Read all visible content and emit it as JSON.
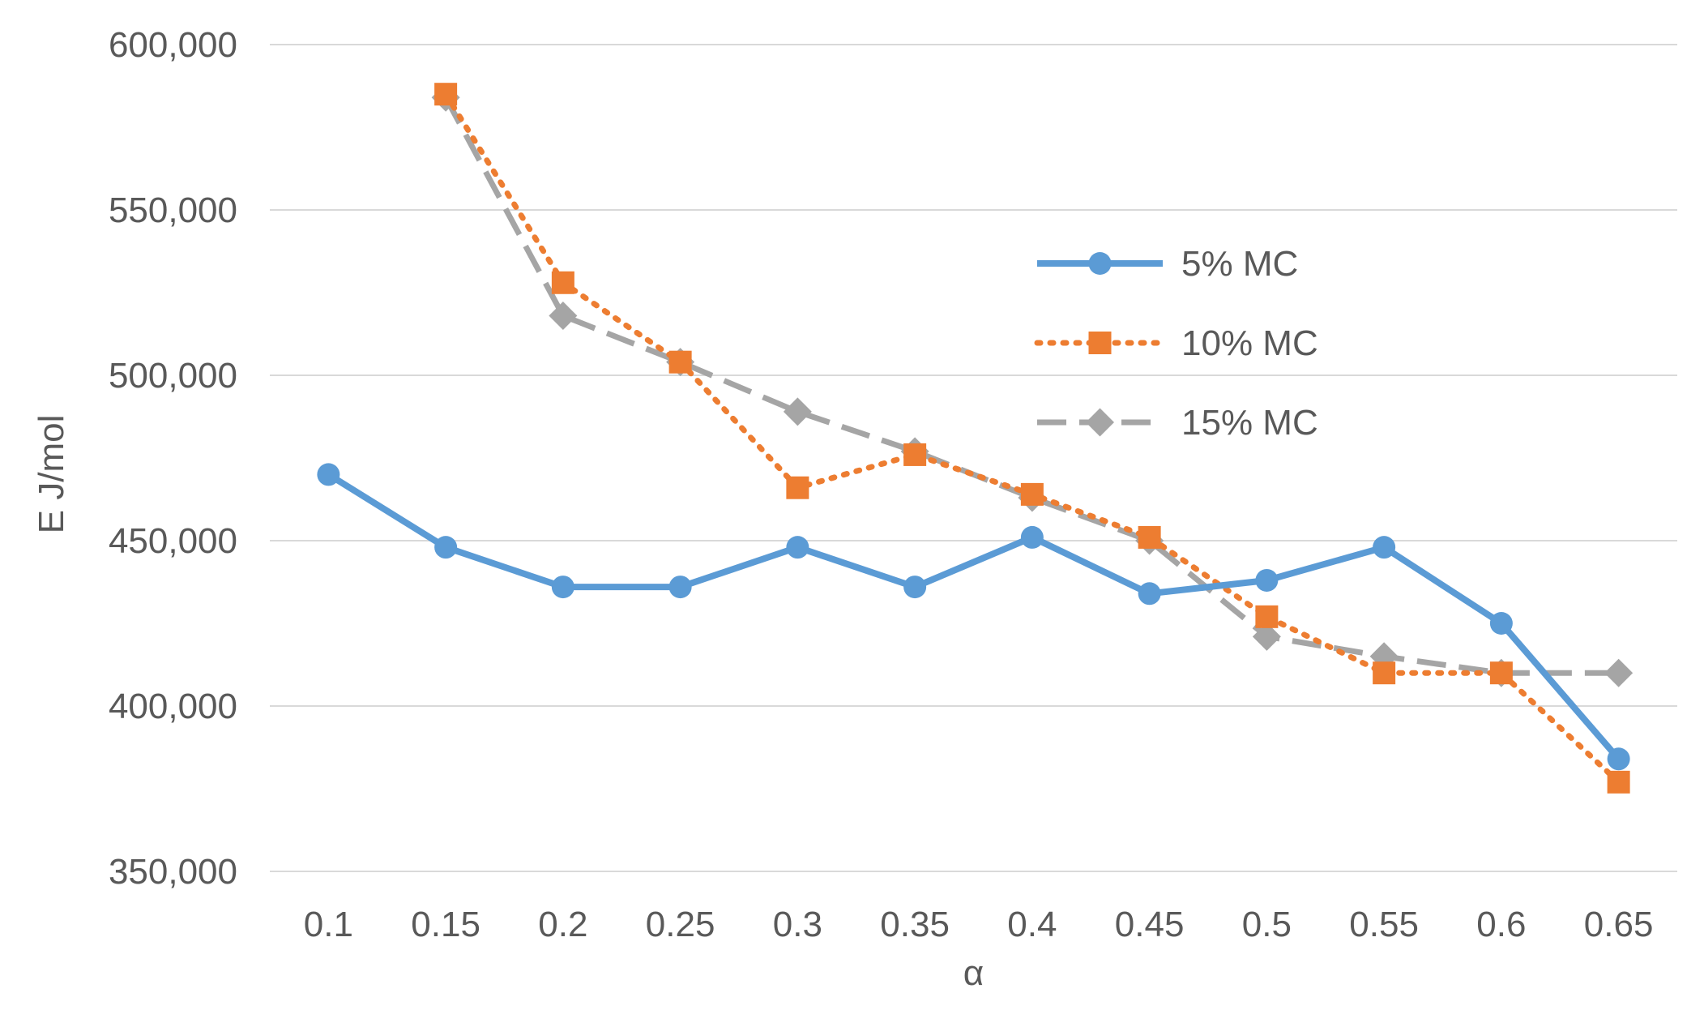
{
  "chart_data": {
    "type": "line",
    "title": "",
    "xlabel": "α",
    "ylabel": "E J/mol",
    "categories": [
      "0.1",
      "0.15",
      "0.2",
      "0.25",
      "0.3",
      "0.35",
      "0.4",
      "0.45",
      "0.5",
      "0.55",
      "0.6",
      "0.65"
    ],
    "ylim": [
      350000,
      600000
    ],
    "yticks": [
      350000,
      400000,
      450000,
      500000,
      550000,
      600000
    ],
    "ytick_labels": [
      "350,000",
      "400,000",
      "450,000",
      "500,000",
      "550,000",
      "600,000"
    ],
    "grid": true,
    "legend_position": "right",
    "series": [
      {
        "name": "5% MC",
        "values": [
          470000,
          448000,
          436000,
          436000,
          448000,
          436000,
          451000,
          434000,
          438000,
          448000,
          425000,
          384000
        ],
        "color": "#5b9bd5",
        "line_style": "solid",
        "marker": "circle"
      },
      {
        "name": "10% MC",
        "values": [
          null,
          585000,
          528000,
          504000,
          466000,
          476000,
          464000,
          451000,
          427000,
          410000,
          410000,
          377000
        ],
        "color": "#ed7d31",
        "line_style": "dotted",
        "marker": "square"
      },
      {
        "name": "15% MC",
        "values": [
          null,
          584000,
          518000,
          504000,
          489000,
          477000,
          463000,
          450000,
          421000,
          415000,
          410000,
          410000
        ],
        "color": "#a5a5a5",
        "line_style": "dashed",
        "marker": "diamond"
      }
    ]
  }
}
